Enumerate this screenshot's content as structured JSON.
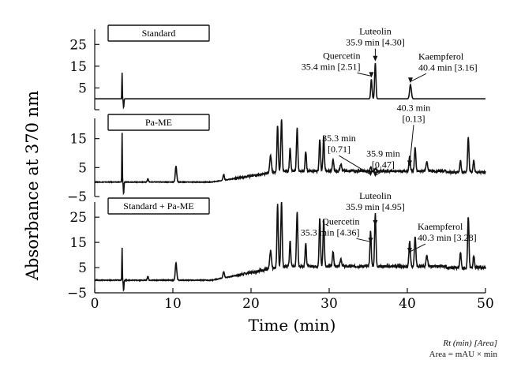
{
  "chart_data": {
    "type": "line",
    "xlabel": "Time (min)",
    "ylabel": "Absorbance at 370 nm",
    "xlim": [
      0,
      50
    ],
    "xticks": [
      0,
      10,
      20,
      30,
      40,
      50
    ],
    "footnote": {
      "line1": "Rt (min) [Area]",
      "line2": "Area = mAU × min"
    },
    "panels": [
      {
        "label": "Standard",
        "ylim": [
          -5,
          32
        ],
        "yticks": [
          -5,
          5,
          15,
          25
        ],
        "yticklabels": [
          "",
          "5",
          "15",
          "25"
        ],
        "baseline": 0,
        "noise": 0,
        "spikes": [
          {
            "x": 3.5,
            "y": 12,
            "w": 0.04
          },
          {
            "x": 3.7,
            "y": -4,
            "w": 0.06
          }
        ],
        "peaks": [
          {
            "x": 35.4,
            "y": 9,
            "w": 0.12
          },
          {
            "x": 35.9,
            "y": 16.5,
            "w": 0.12
          },
          {
            "x": 40.4,
            "y": 6.5,
            "w": 0.16
          }
        ],
        "annotations": [
          {
            "lines": [
              "Luteolin",
              "35.9 min [4.30]"
            ],
            "x": 35.9,
            "y": 16.5
          },
          {
            "lines": [
              "Quercetin",
              "35.4 min [2.51]"
            ],
            "x": 35.4,
            "y": 9
          },
          {
            "lines": [
              "Kaempferol",
              "40.4 min [3.16]"
            ],
            "x": 40.4,
            "y": 6.5
          }
        ]
      },
      {
        "label": "Pa-ME",
        "ylim": [
          -5,
          22
        ],
        "yticks": [
          -5,
          5,
          15
        ],
        "yticklabels": [
          "−5",
          "5",
          "15"
        ],
        "baseline": 0,
        "noise": 0.35,
        "spikes": [
          {
            "x": 3.5,
            "y": 17,
            "w": 0.04
          },
          {
            "x": 3.7,
            "y": -4,
            "w": 0.06
          }
        ],
        "peaks": [
          {
            "x": 6.8,
            "y": 1.2,
            "w": 0.1
          },
          {
            "x": 10.4,
            "y": 5.5,
            "w": 0.13
          },
          {
            "x": 16.5,
            "y": 2,
            "w": 0.12
          },
          {
            "x": 22.5,
            "y": 6,
            "w": 0.15
          },
          {
            "x": 23.4,
            "y": 16,
            "w": 0.12
          },
          {
            "x": 23.9,
            "y": 18,
            "w": 0.12
          },
          {
            "x": 25.0,
            "y": 8,
            "w": 0.12
          },
          {
            "x": 25.9,
            "y": 15,
            "w": 0.12
          },
          {
            "x": 27.0,
            "y": 7,
            "w": 0.12
          },
          {
            "x": 28.8,
            "y": 11,
            "w": 0.12
          },
          {
            "x": 29.3,
            "y": 12,
            "w": 0.12
          },
          {
            "x": 30.5,
            "y": 4,
            "w": 0.12
          },
          {
            "x": 31.5,
            "y": 2.5,
            "w": 0.14
          },
          {
            "x": 35.3,
            "y": 1.5,
            "w": 0.12
          },
          {
            "x": 35.9,
            "y": 1.2,
            "w": 0.12
          },
          {
            "x": 40.3,
            "y": 5,
            "w": 0.13
          },
          {
            "x": 41.0,
            "y": 8,
            "w": 0.13
          },
          {
            "x": 42.5,
            "y": 3,
            "w": 0.14
          },
          {
            "x": 46.8,
            "y": 4,
            "w": 0.12
          },
          {
            "x": 47.8,
            "y": 12,
            "w": 0.12
          },
          {
            "x": 48.5,
            "y": 4,
            "w": 0.12
          }
        ],
        "annotations": [
          {
            "lines": [
              "35.3 min",
              "[0.71]"
            ],
            "x": 35.3,
            "y": 1.5
          },
          {
            "lines": [
              "35.9 min",
              "[0.47]"
            ],
            "x": 35.9,
            "y": 1.2
          },
          {
            "lines": [
              "40.3 min",
              "[0.13]"
            ],
            "x": 40.3,
            "y": 5
          }
        ]
      },
      {
        "label": "Standard + Pa-ME",
        "ylim": [
          -5,
          31
        ],
        "yticks": [
          -5,
          5,
          15,
          25
        ],
        "yticklabels": [
          "−5",
          "5",
          "15",
          "25"
        ],
        "baseline": 0,
        "noise": 0.45,
        "spikes": [
          {
            "x": 3.5,
            "y": 13,
            "w": 0.04
          },
          {
            "x": 3.7,
            "y": -4,
            "w": 0.06
          }
        ],
        "peaks": [
          {
            "x": 6.8,
            "y": 1.5,
            "w": 0.1
          },
          {
            "x": 10.4,
            "y": 7,
            "w": 0.13
          },
          {
            "x": 16.5,
            "y": 2.5,
            "w": 0.12
          },
          {
            "x": 22.5,
            "y": 7,
            "w": 0.15
          },
          {
            "x": 23.4,
            "y": 25,
            "w": 0.12
          },
          {
            "x": 23.9,
            "y": 26,
            "w": 0.12
          },
          {
            "x": 25.0,
            "y": 10,
            "w": 0.12
          },
          {
            "x": 25.9,
            "y": 22,
            "w": 0.12
          },
          {
            "x": 27.0,
            "y": 9,
            "w": 0.12
          },
          {
            "x": 28.8,
            "y": 19,
            "w": 0.12
          },
          {
            "x": 29.3,
            "y": 19,
            "w": 0.12
          },
          {
            "x": 30.5,
            "y": 6,
            "w": 0.12
          },
          {
            "x": 31.5,
            "y": 3,
            "w": 0.14
          },
          {
            "x": 35.3,
            "y": 14,
            "w": 0.12
          },
          {
            "x": 35.9,
            "y": 21,
            "w": 0.12
          },
          {
            "x": 40.3,
            "y": 10,
            "w": 0.13
          },
          {
            "x": 41.0,
            "y": 12,
            "w": 0.13
          },
          {
            "x": 42.5,
            "y": 4,
            "w": 0.14
          },
          {
            "x": 46.8,
            "y": 6,
            "w": 0.12
          },
          {
            "x": 47.8,
            "y": 20,
            "w": 0.12
          },
          {
            "x": 48.5,
            "y": 5,
            "w": 0.12
          }
        ],
        "annotations": [
          {
            "lines": [
              "Luteolin",
              "35.9 min [4.95]"
            ],
            "x": 35.9,
            "y": 21
          },
          {
            "lines": [
              "Quercetin",
              "35.3 min [4.36]"
            ],
            "x": 35.3,
            "y": 14
          },
          {
            "lines": [
              "Kaempferol",
              "40.3 min [3.28]"
            ],
            "x": 40.3,
            "y": 10
          }
        ]
      }
    ]
  }
}
